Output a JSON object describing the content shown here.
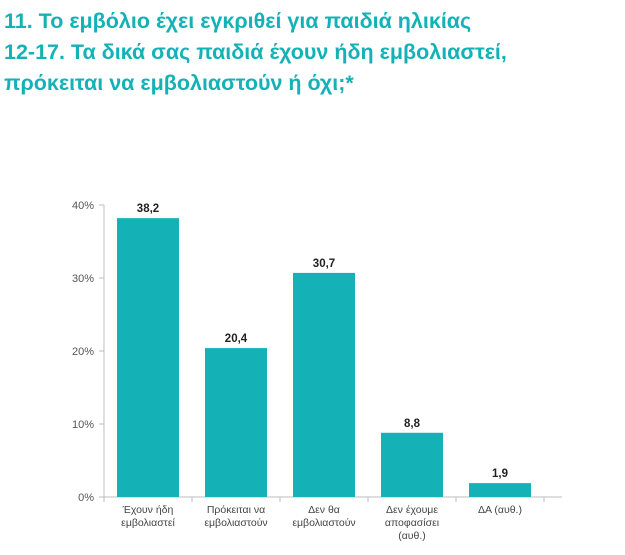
{
  "title": "11. Το εμβόλιο έχει εγκριθεί για παιδιά ηλικίας\n12-17. Τα δικά σας παιδιά έχουν ήδη εμβολιαστεί,\nπρόκειται να εμβολιαστούν ή όχι;*",
  "colors": {
    "title": "#14b2b6",
    "bar": "#14b2b6",
    "axis": "#bdbdbd"
  },
  "chart_data": {
    "type": "bar",
    "categories": [
      [
        "Έχουν ήδη",
        "εμβολιαστεί"
      ],
      [
        "Πρόκειται να",
        "εμβολιαστούν"
      ],
      [
        "Δεν θα",
        "εμβολιαστούν"
      ],
      [
        "Δεν έχουμε",
        "αποφασίσει",
        "(αυθ.)"
      ],
      [
        "ΔΑ (αυθ.)"
      ]
    ],
    "values": [
      38.2,
      20.4,
      30.7,
      8.8,
      1.9
    ],
    "value_labels": [
      "38,2",
      "20,4",
      "30,7",
      "8,8",
      "1,9"
    ],
    "ylim": [
      0,
      40
    ],
    "yticks": [
      0,
      10,
      20,
      30,
      40
    ],
    "ytick_labels": [
      "0%",
      "10%",
      "20%",
      "30%",
      "40%"
    ],
    "grid": false,
    "legend": "none"
  }
}
